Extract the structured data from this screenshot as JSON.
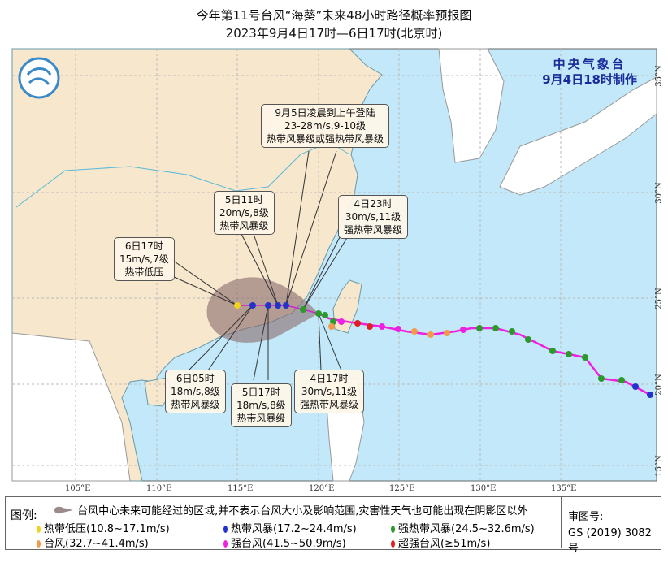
{
  "title": {
    "line1": "今年第11号台风“海葵”未来48小时路径概率预报图",
    "line2": "2023年9月4日17时—6日17时(北京时)"
  },
  "issuer": {
    "name": "中央气象台",
    "time": "9月4日18时制作"
  },
  "axes": {
    "lon_labels": [
      "105°E",
      "110°E",
      "115°E",
      "120°E",
      "125°E",
      "130°E",
      "135°E"
    ],
    "lat_labels": [
      "35°N",
      "30°N",
      "25°N",
      "20°N",
      "15°N"
    ]
  },
  "colors": {
    "land": "#f6e7cd",
    "sea": "#c2e8f9",
    "cone": "#8a6a6a",
    "td": "#f2d21c",
    "ts": "#2233cc",
    "sts": "#2a9a2a",
    "ty": "#f39a4a",
    "sty": "#f020e0",
    "super": "#e02020"
  },
  "annotations": [
    {
      "id": "landfall",
      "lines": [
        "9月5日凌晨到上午登陆",
        "23-28m/s,9-10级",
        "热带风暴级或强热带风暴级"
      ]
    },
    {
      "id": "5d11",
      "lines": [
        "5日11时",
        "20m/s,8级",
        "热带风暴级"
      ]
    },
    {
      "id": "4d23",
      "lines": [
        "4日23时",
        "30m/s,11级",
        "强热带风暴级"
      ]
    },
    {
      "id": "6d17",
      "lines": [
        "6日17时",
        "15m/s,7级",
        "热带低压"
      ]
    },
    {
      "id": "6d05",
      "lines": [
        "6日05时",
        "18m/s,8级",
        "热带风暴级"
      ]
    },
    {
      "id": "5d17",
      "lines": [
        "5日17时",
        "18m/s,8级",
        "热带风暴级"
      ]
    },
    {
      "id": "4d17",
      "lines": [
        "4日17时",
        "30m/s,11级",
        "强热带风暴级"
      ]
    }
  ],
  "legend": {
    "label": "图例:",
    "cone_text": "台风中心未来可能经过的区域,并不表示台风大小及影响范围,灾害性天气也可能出现在阴影区以外",
    "items": [
      {
        "label": "热带低压(10.8~17.1m/s)",
        "color": "#f2d21c"
      },
      {
        "label": "热带风暴(17.2~24.4m/s)",
        "color": "#2233cc"
      },
      {
        "label": "强热带风暴(24.5~32.6m/s)",
        "color": "#2a9a2a"
      },
      {
        "label": "台风(32.7~41.4m/s)",
        "color": "#f39a4a"
      },
      {
        "label": "强台风(41.5~50.9m/s)",
        "color": "#f020e0"
      },
      {
        "label": "超强台风(≥51m/s)",
        "color": "#e02020"
      }
    ]
  },
  "approval": {
    "label": "审图号:",
    "number": "GS (2019) 3082号"
  }
}
